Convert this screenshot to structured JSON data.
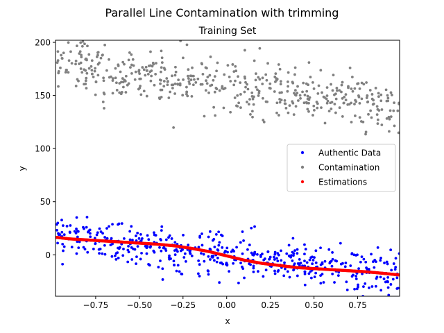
{
  "chart_data": {
    "type": "scatter",
    "suptitle": "Parallel Line Contamination with trimming",
    "title": "Training Set",
    "xlabel": "x",
    "ylabel": "y",
    "xlim": [
      -0.98,
      0.99
    ],
    "ylim": [
      -39,
      202
    ],
    "xticks": [
      -0.75,
      -0.5,
      -0.25,
      0.0,
      0.25,
      0.5,
      0.75
    ],
    "xtick_labels": [
      "−0.75",
      "−0.50",
      "−0.25",
      "0.00",
      "0.25",
      "0.50",
      "0.75"
    ],
    "yticks": [
      0,
      50,
      100,
      150,
      200
    ],
    "ytick_labels": [
      "0",
      "50",
      "100",
      "150",
      "200"
    ],
    "grid": false,
    "legend_position": "center-right",
    "series": [
      {
        "name": "Authentic Data",
        "color": "#0000ff",
        "trend": {
          "intercept": 0,
          "slope": -20,
          "noise_sd": 10
        },
        "n_points": 500
      },
      {
        "name": "Contamination",
        "color": "#808080",
        "trend": {
          "intercept": 160,
          "slope": -20,
          "noise_sd": 12
        },
        "n_points": 500
      },
      {
        "name": "Estimations",
        "color": "#ff0000",
        "x": [
          -0.98,
          -0.9,
          -0.8,
          -0.7,
          -0.6,
          -0.5,
          -0.4,
          -0.3,
          -0.2,
          -0.1,
          0.0,
          0.1,
          0.2,
          0.3,
          0.4,
          0.5,
          0.6,
          0.7,
          0.8,
          0.9,
          0.99
        ],
        "y": [
          16.5,
          15,
          14,
          13,
          12,
          11,
          10,
          8.5,
          6,
          3,
          -1,
          -5,
          -8,
          -10,
          -12,
          -13,
          -14,
          -15,
          -16,
          -17.5,
          -19
        ]
      }
    ]
  }
}
